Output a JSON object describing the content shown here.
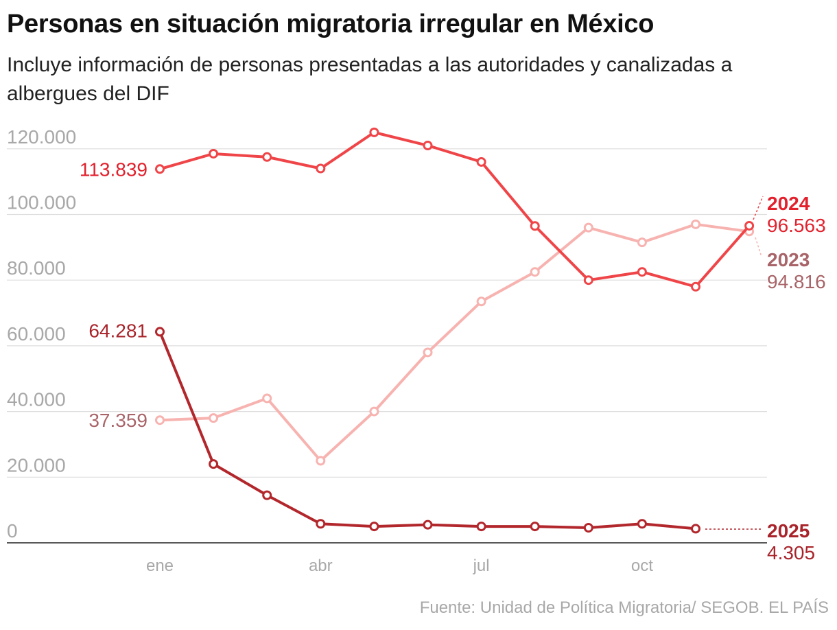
{
  "title": "Personas en situación migratoria irregular en México",
  "subtitle": "Incluye información de personas presentadas a las autoridades y canalizadas a albergues del DIF",
  "source": "Fuente: Unidad de Política Migratoria/ SEGOB. EL PAÍS",
  "chart_data": {
    "type": "line",
    "x": [
      "ene",
      "feb",
      "mar",
      "abr",
      "may",
      "jun",
      "jul",
      "ago",
      "sep",
      "oct",
      "nov",
      "dic"
    ],
    "xtick_labels": [
      "ene",
      "",
      "",
      "abr",
      "",
      "",
      "jul",
      "",
      "",
      "oct",
      "",
      ""
    ],
    "yticks": [
      0,
      20000,
      40000,
      60000,
      80000,
      100000,
      120000
    ],
    "ytick_labels": [
      "0",
      "20.000",
      "40.000",
      "60.000",
      "80.000",
      "100.000",
      "120.000"
    ],
    "ylim": [
      0,
      125000
    ],
    "grid": true,
    "series": [
      {
        "name": "2023",
        "color": "#f7b3b0",
        "label_color": "#a86468",
        "values": [
          37359,
          38000,
          44000,
          25000,
          40000,
          58000,
          73500,
          82500,
          96000,
          91500,
          97000,
          94816
        ],
        "start_label": "37.359",
        "end_label": "94.816"
      },
      {
        "name": "2024",
        "color": "#ef4548",
        "label_color": "#e2212d",
        "values": [
          113839,
          118500,
          117500,
          114000,
          125000,
          121000,
          116000,
          96500,
          80000,
          82500,
          78000,
          96563
        ],
        "start_label": "113.839",
        "end_label": "96.563"
      },
      {
        "name": "2025",
        "color": "#b2272c",
        "label_color": "#a8242a",
        "values": [
          64281,
          24000,
          14500,
          5800,
          5000,
          5500,
          5000,
          5000,
          4600,
          5800,
          4305,
          null
        ],
        "start_label": "64.281",
        "end_label": "4.305"
      }
    ]
  }
}
